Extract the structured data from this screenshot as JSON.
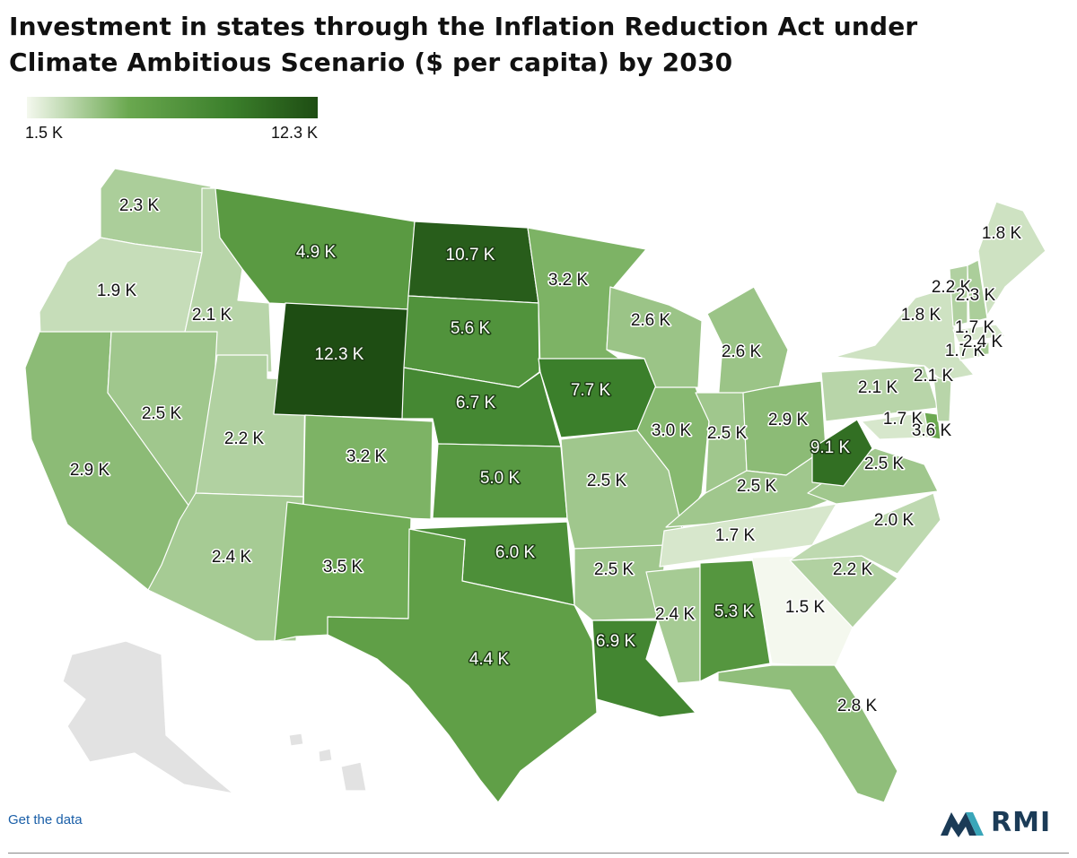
{
  "title": {
    "line1": "Investment in states through the Inflation Reduction Act under",
    "line2": "Climate Ambitious Scenario ($ per capita) by 2030"
  },
  "legend": {
    "min_label": "1.5 K",
    "max_label": "12.3 K",
    "min": 1.5,
    "max": 12.3
  },
  "colors": {
    "scale": [
      "#f4f8ee",
      "#6aa84f",
      "#3b7f2b",
      "#1e4d13"
    ],
    "no_data": "#e2e2e2",
    "link": "#1a5fa8",
    "logo_navy": "#1b3b57",
    "logo_teal": "#3aa6b9"
  },
  "states": [
    {
      "abbr": "WA",
      "label": "2.3 K",
      "value": 2.3
    },
    {
      "abbr": "OR",
      "label": "1.9 K",
      "value": 1.9
    },
    {
      "abbr": "CA",
      "label": "2.9 K",
      "value": 2.9
    },
    {
      "abbr": "ID",
      "label": "2.1 K",
      "value": 2.1
    },
    {
      "abbr": "NV",
      "label": "2.5 K",
      "value": 2.5
    },
    {
      "abbr": "UT",
      "label": "2.2 K",
      "value": 2.2
    },
    {
      "abbr": "AZ",
      "label": "2.4 K",
      "value": 2.4
    },
    {
      "abbr": "MT",
      "label": "4.9 K",
      "value": 4.9
    },
    {
      "abbr": "WY",
      "label": "12.3 K",
      "value": 12.3
    },
    {
      "abbr": "CO",
      "label": "3.2 K",
      "value": 3.2
    },
    {
      "abbr": "NM",
      "label": "3.5 K",
      "value": 3.5
    },
    {
      "abbr": "ND",
      "label": "10.7 K",
      "value": 10.7
    },
    {
      "abbr": "SD",
      "label": "5.6 K",
      "value": 5.6
    },
    {
      "abbr": "NE",
      "label": "6.7 K",
      "value": 6.7
    },
    {
      "abbr": "KS",
      "label": "5.0 K",
      "value": 5.0
    },
    {
      "abbr": "OK",
      "label": "6.0 K",
      "value": 6.0
    },
    {
      "abbr": "TX",
      "label": "4.4 K",
      "value": 4.4
    },
    {
      "abbr": "MN",
      "label": "3.2 K",
      "value": 3.2
    },
    {
      "abbr": "IA",
      "label": "7.7 K",
      "value": 7.7
    },
    {
      "abbr": "MO",
      "label": "2.5 K",
      "value": 2.5
    },
    {
      "abbr": "AR",
      "label": "2.5 K",
      "value": 2.5
    },
    {
      "abbr": "LA",
      "label": "6.9 K",
      "value": 6.9
    },
    {
      "abbr": "WI",
      "label": "2.6 K",
      "value": 2.6
    },
    {
      "abbr": "IL",
      "label": "3.0 K",
      "value": 3.0
    },
    {
      "abbr": "MI",
      "label": "2.6 K",
      "value": 2.6
    },
    {
      "abbr": "IN",
      "label": "2.5 K",
      "value": 2.5
    },
    {
      "abbr": "OH",
      "label": "2.9 K",
      "value": 2.9
    },
    {
      "abbr": "KY",
      "label": "2.5 K",
      "value": 2.5
    },
    {
      "abbr": "TN",
      "label": "1.7 K",
      "value": 1.7
    },
    {
      "abbr": "MS",
      "label": "2.4 K",
      "value": 2.4
    },
    {
      "abbr": "AL",
      "label": "5.3 K",
      "value": 5.3
    },
    {
      "abbr": "GA",
      "label": "1.5 K",
      "value": 1.5
    },
    {
      "abbr": "FL",
      "label": "2.8 K",
      "value": 2.8
    },
    {
      "abbr": "SC",
      "label": "2.2 K",
      "value": 2.2
    },
    {
      "abbr": "NC",
      "label": "2.0 K",
      "value": 2.0
    },
    {
      "abbr": "VA",
      "label": "2.5 K",
      "value": 2.5
    },
    {
      "abbr": "WV",
      "label": "9.1 K",
      "value": 9.1
    },
    {
      "abbr": "PA",
      "label": "2.1 K",
      "value": 2.1
    },
    {
      "abbr": "NY",
      "label": "1.8 K",
      "value": 1.8
    },
    {
      "abbr": "MD",
      "label": "1.7 K",
      "value": 1.7
    },
    {
      "abbr": "DE",
      "label": "3.6 K",
      "value": 3.6
    },
    {
      "abbr": "NJ",
      "label": "2.1 K",
      "value": 2.1
    },
    {
      "abbr": "CT",
      "label": "1.7 K",
      "value": 1.7
    },
    {
      "abbr": "RI",
      "label": "2.4 K",
      "value": 2.4
    },
    {
      "abbr": "MA",
      "label": "1.7 K",
      "value": 1.7
    },
    {
      "abbr": "VT",
      "label": "2.2 K",
      "value": 2.2
    },
    {
      "abbr": "NH",
      "label": "2.3 K",
      "value": 2.3
    },
    {
      "abbr": "ME",
      "label": "1.8 K",
      "value": 1.8
    },
    {
      "abbr": "AK",
      "label": "",
      "value": null
    },
    {
      "abbr": "HI",
      "label": "",
      "value": null
    }
  ],
  "footer": {
    "link_text": "Get the data",
    "logo_text": "RMI"
  }
}
